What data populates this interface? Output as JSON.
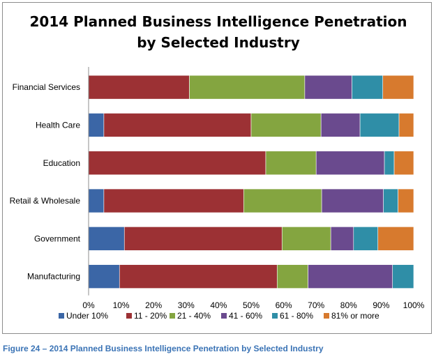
{
  "chart_data": {
    "type": "bar",
    "orientation": "horizontal",
    "stacked": "percent",
    "title_lines": [
      "2014 Planned Business Intelligence Penetration",
      "by Selected Industry"
    ],
    "categories": [
      "Financial Services",
      "Health Care",
      "Education",
      "Retail & Wholesale",
      "Government",
      "Manufacturing"
    ],
    "series": [
      {
        "name": "Under 10%",
        "color": "#3b66a6",
        "values": [
          0,
          4.7,
          0,
          4.7,
          11,
          9.5
        ]
      },
      {
        "name": "11 - 20%",
        "color": "#9c3134",
        "values": [
          31,
          45.3,
          54.5,
          43,
          48.5,
          48.5
        ]
      },
      {
        "name": "21 - 40%",
        "color": "#84a540",
        "values": [
          35.5,
          21.5,
          15.5,
          24,
          15,
          9.5
        ]
      },
      {
        "name": "41 - 60%",
        "color": "#6a4a8e",
        "values": [
          14.5,
          12,
          21,
          19,
          7,
          26
        ]
      },
      {
        "name": "61 - 80%",
        "color": "#2f8ea7",
        "values": [
          9.5,
          12,
          3,
          4.5,
          7.5,
          6.5
        ]
      },
      {
        "name": "81% or more",
        "color": "#d77a2e",
        "values": [
          9.5,
          4.5,
          6,
          4.8,
          11,
          0
        ]
      }
    ],
    "x_ticks": [
      "0%",
      "10%",
      "20%",
      "30%",
      "40%",
      "50%",
      "60%",
      "70%",
      "80%",
      "90%",
      "100%"
    ],
    "xlim": [
      0,
      100
    ],
    "grid": false,
    "legend_position": "bottom"
  },
  "caption": "Figure 24 – 2014 Planned Business Intelligence Penetration by Selected Industry"
}
